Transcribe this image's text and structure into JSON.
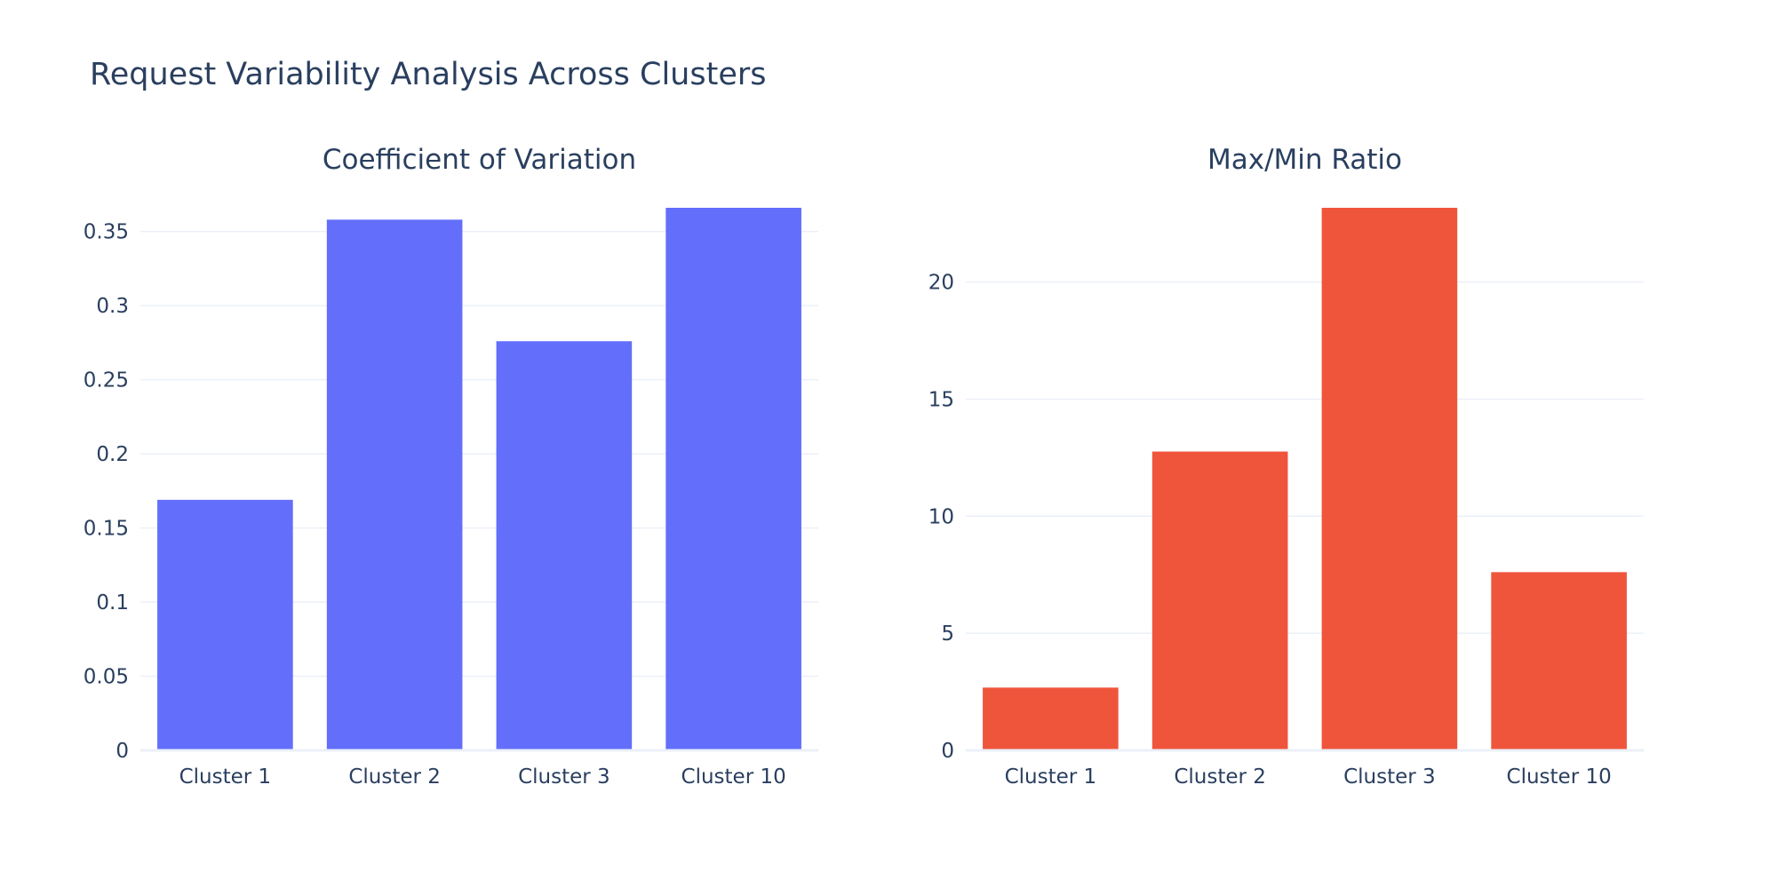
{
  "title": "Request Variability Analysis Across Clusters",
  "colors": {
    "series_1": "#636efa",
    "series_2": "#ef553b",
    "text": "#2a3f5f",
    "grid": "#ebf0f8",
    "background": "#ffffff"
  },
  "chart_data": [
    {
      "type": "bar",
      "title": "Coefficient of Variation",
      "categories": [
        "Cluster 1",
        "Cluster 2",
        "Cluster 3",
        "Cluster 10"
      ],
      "values": [
        0.169,
        0.358,
        0.276,
        0.366
      ],
      "yticks": [
        0,
        0.05,
        0.1,
        0.15,
        0.2,
        0.25,
        0.3,
        0.35
      ],
      "ytick_labels": [
        "0",
        "0.05",
        "0.1",
        "0.15",
        "0.2",
        "0.25",
        "0.3",
        "0.35"
      ],
      "ylim": [
        0,
        0.366
      ],
      "xlabel": "",
      "ylabel": "",
      "grid": true,
      "color": "#636efa"
    },
    {
      "type": "bar",
      "title": "Max/Min Ratio",
      "categories": [
        "Cluster 1",
        "Cluster 2",
        "Cluster 3",
        "Cluster 10"
      ],
      "values": [
        2.68,
        12.76,
        23.17,
        7.61
      ],
      "yticks": [
        0,
        5,
        10,
        15,
        20
      ],
      "ytick_labels": [
        "0",
        "5",
        "10",
        "15",
        "20"
      ],
      "ylim": [
        0,
        23.17
      ],
      "xlabel": "",
      "ylabel": "",
      "grid": true,
      "color": "#ef553b"
    }
  ]
}
